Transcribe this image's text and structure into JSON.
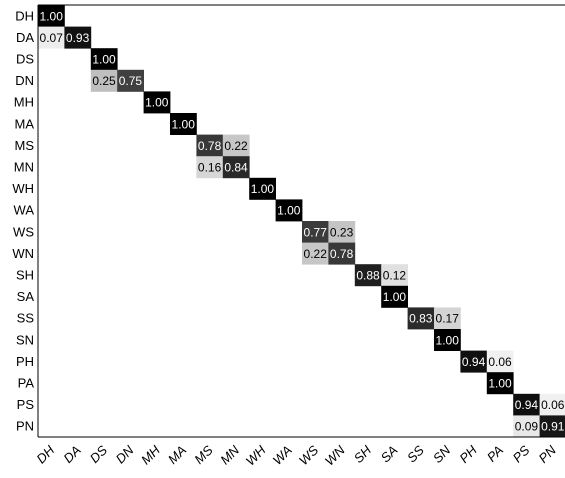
{
  "chart_data": {
    "type": "heatmap",
    "title": "",
    "xlabel": "",
    "ylabel": "",
    "row_labels": [
      "DH",
      "DA",
      "DS",
      "DN",
      "MH",
      "MA",
      "MS",
      "MN",
      "WH",
      "WA",
      "WS",
      "WN",
      "SH",
      "SA",
      "SS",
      "SN",
      "PH",
      "PA",
      "PS",
      "PN"
    ],
    "col_labels": [
      "DH",
      "DA",
      "DS",
      "DN",
      "MH",
      "MA",
      "MS",
      "MN",
      "WH",
      "WA",
      "WS",
      "WN",
      "SH",
      "SA",
      "SS",
      "SN",
      "PH",
      "PA",
      "PS",
      "PN"
    ],
    "value_range": [
      0,
      1
    ],
    "cells": [
      {
        "row": "DH",
        "col": "DH",
        "value": 1.0,
        "label": "1.00"
      },
      {
        "row": "DA",
        "col": "DH",
        "value": 0.07,
        "label": "0.07"
      },
      {
        "row": "DA",
        "col": "DA",
        "value": 0.93,
        "label": "0.93"
      },
      {
        "row": "DS",
        "col": "DS",
        "value": 1.0,
        "label": "1.00"
      },
      {
        "row": "DN",
        "col": "DS",
        "value": 0.25,
        "label": "0.25"
      },
      {
        "row": "DN",
        "col": "DN",
        "value": 0.75,
        "label": "0.75"
      },
      {
        "row": "MH",
        "col": "MH",
        "value": 1.0,
        "label": "1.00"
      },
      {
        "row": "MA",
        "col": "MA",
        "value": 1.0,
        "label": "1.00"
      },
      {
        "row": "MS",
        "col": "MS",
        "value": 0.78,
        "label": "0.78"
      },
      {
        "row": "MS",
        "col": "MN",
        "value": 0.22,
        "label": "0.22"
      },
      {
        "row": "MN",
        "col": "MS",
        "value": 0.16,
        "label": "0.16"
      },
      {
        "row": "MN",
        "col": "MN",
        "value": 0.84,
        "label": "0.84"
      },
      {
        "row": "WH",
        "col": "WH",
        "value": 1.0,
        "label": "1.00"
      },
      {
        "row": "WA",
        "col": "WA",
        "value": 1.0,
        "label": "1.00"
      },
      {
        "row": "WS",
        "col": "WS",
        "value": 0.77,
        "label": "0.77"
      },
      {
        "row": "WS",
        "col": "WN",
        "value": 0.23,
        "label": "0.23"
      },
      {
        "row": "WN",
        "col": "WS",
        "value": 0.22,
        "label": "0.22"
      },
      {
        "row": "WN",
        "col": "WN",
        "value": 0.78,
        "label": "0.78"
      },
      {
        "row": "SH",
        "col": "SH",
        "value": 0.88,
        "label": "0.88"
      },
      {
        "row": "SH",
        "col": "SA",
        "value": 0.12,
        "label": "0.12"
      },
      {
        "row": "SA",
        "col": "SA",
        "value": 1.0,
        "label": "1.00"
      },
      {
        "row": "SS",
        "col": "SS",
        "value": 0.83,
        "label": "0.83"
      },
      {
        "row": "SS",
        "col": "SN",
        "value": 0.17,
        "label": "0.17"
      },
      {
        "row": "SN",
        "col": "SN",
        "value": 1.0,
        "label": "1.00"
      },
      {
        "row": "PH",
        "col": "PH",
        "value": 0.94,
        "label": "0.94"
      },
      {
        "row": "PH",
        "col": "PA",
        "value": 0.06,
        "label": "0.06"
      },
      {
        "row": "PA",
        "col": "PA",
        "value": 1.0,
        "label": "1.00"
      },
      {
        "row": "PS",
        "col": "PS",
        "value": 0.94,
        "label": "0.94"
      },
      {
        "row": "PS",
        "col": "PN",
        "value": 0.06,
        "label": "0.06"
      },
      {
        "row": "PN",
        "col": "PS",
        "value": 0.09,
        "label": "0.09"
      },
      {
        "row": "PN",
        "col": "PN",
        "value": 0.91,
        "label": "0.91"
      }
    ],
    "colors": {
      "high": "#000000",
      "low": "#ffffff",
      "frame": "#000000",
      "text_dark": "#000000",
      "text_light": "#ffffff"
    }
  }
}
